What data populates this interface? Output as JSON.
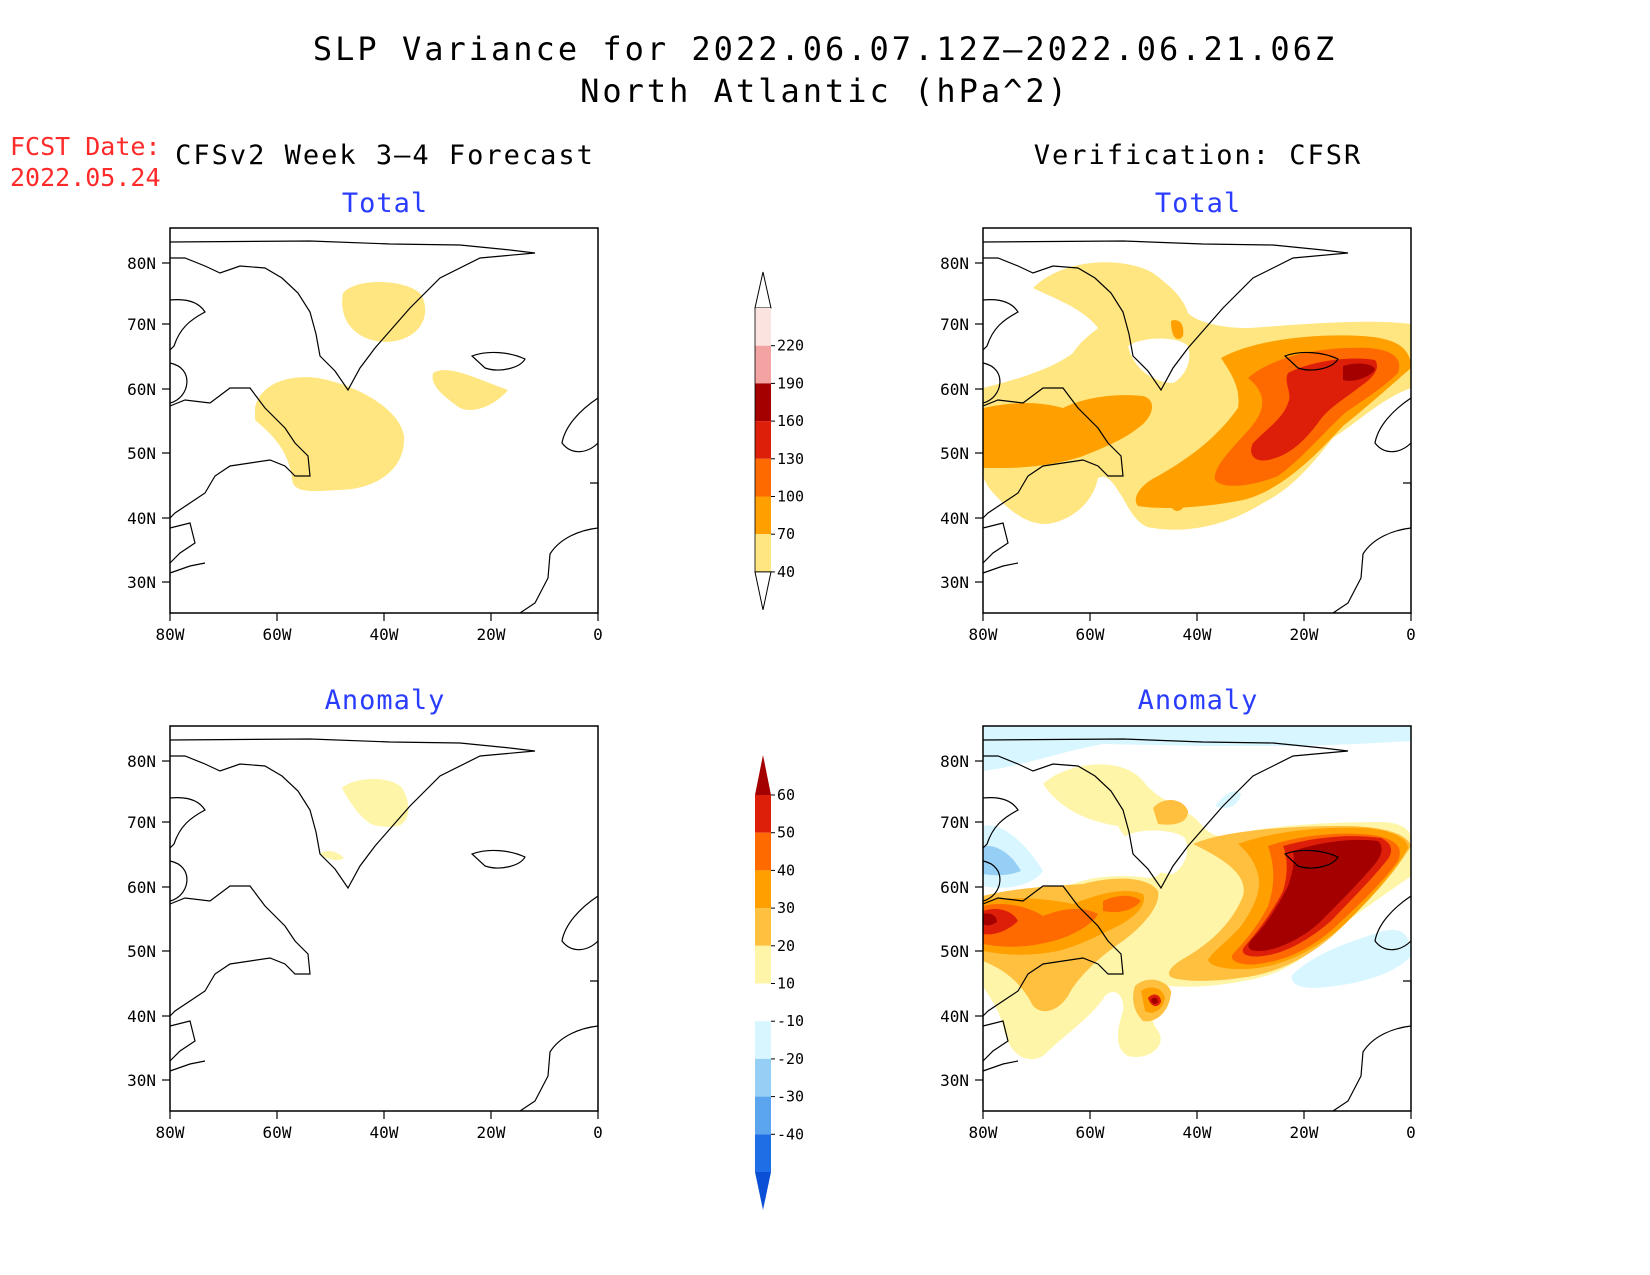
{
  "header": {
    "title_line1": "SLP Variance for 2022.06.07.12Z–2022.06.21.06Z",
    "title_line2": "North Atlantic (hPa^2)",
    "fcst_label": "FCST Date:",
    "fcst_date": "2022.05.24"
  },
  "columns": {
    "forecast": "CFSv2 Week 3–4 Forecast",
    "verification": "Verification: CFSR"
  },
  "panels": {
    "total": "Total",
    "anomaly": "Anomaly"
  },
  "axes": {
    "lat_labels": [
      "80N",
      "70N",
      "60N",
      "50N",
      "40N",
      "30N"
    ],
    "lon_labels": [
      "80W",
      "60W",
      "40W",
      "20W",
      "0"
    ]
  },
  "colorbars": {
    "total": {
      "labels": [
        "220",
        "190",
        "160",
        "130",
        "100",
        "70",
        "40"
      ],
      "colors": [
        "#fbe4e0",
        "#f4a3a3",
        "#a50000",
        "#dd1f0a",
        "#ff6a00",
        "#ffa000",
        "#ffe680"
      ]
    },
    "anomaly": {
      "labels": [
        "60",
        "50",
        "40",
        "30",
        "20",
        "10",
        "-10",
        "-20",
        "-30",
        "-40"
      ],
      "colors": [
        "#a50000",
        "#dd1f0a",
        "#ff6a00",
        "#ffa000",
        "#ffc040",
        "#fff5a8",
        "#ffffff",
        "#d8f6ff",
        "#96cff5",
        "#5aa5ee",
        "#1e6ee6",
        "#0b4fd6"
      ]
    }
  },
  "fill_colors": {
    "c40": "#ffe680",
    "c70": "#ffa000",
    "c100": "#ff6a00",
    "c130": "#dd1f0a",
    "c160": "#a50000",
    "a10": "#fff5a8",
    "a20": "#ffc040",
    "a30": "#ffa000",
    "a40": "#ff6a00",
    "a50": "#dd1f0a",
    "a60": "#a50000",
    "n10": "#d8f6ff",
    "n20": "#96cff5"
  }
}
